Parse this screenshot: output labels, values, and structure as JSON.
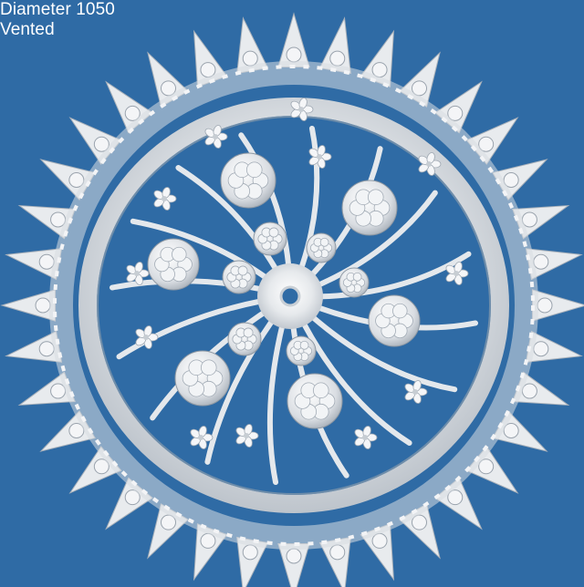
{
  "caption": {
    "line1": "Diameter 1050",
    "line2": "Vented"
  },
  "image": {
    "subject": "ornate plaster ceiling rose",
    "background_color": "#2f6ba5",
    "ornament_color": "#e9ecef"
  }
}
